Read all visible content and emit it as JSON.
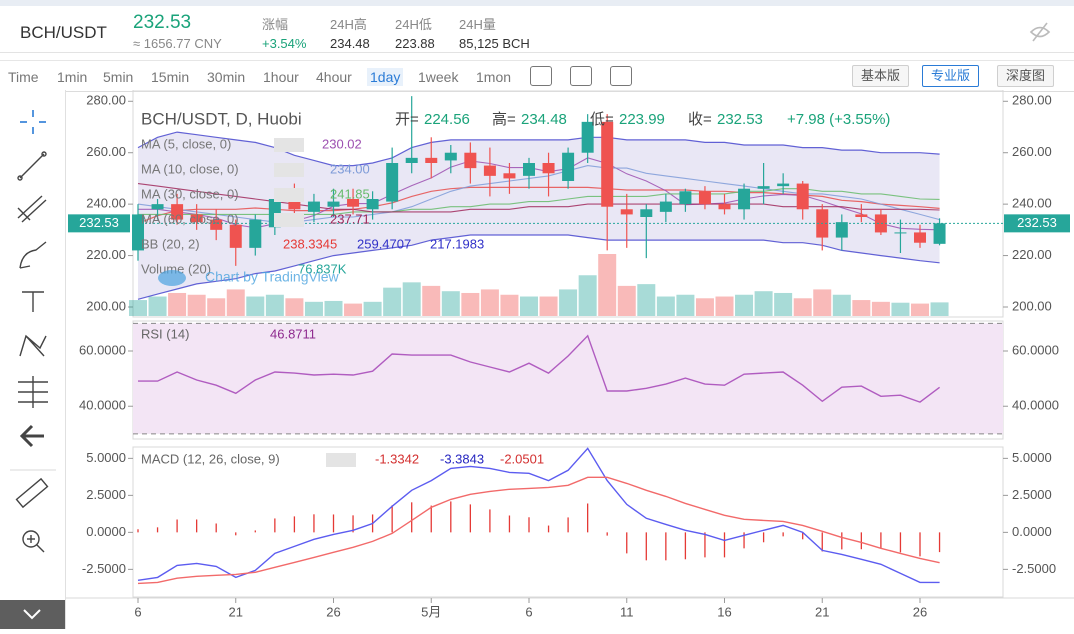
{
  "header": {
    "pair": "BCH/USDT",
    "price": "232.53",
    "cny": "≈ 1656.77 CNY",
    "stats": [
      {
        "label": "涨幅",
        "value": "+3.54%"
      },
      {
        "label": "24H高",
        "value": "234.48"
      },
      {
        "label": "24H低",
        "value": "223.88"
      },
      {
        "label": "24H量",
        "value": "85,125 BCH"
      }
    ]
  },
  "toolbar": {
    "intervals": [
      "Time",
      "1min",
      "5min",
      "15min",
      "30min",
      "1hour",
      "4hour",
      "1day",
      "1week",
      "1mon"
    ],
    "active_interval": "1day",
    "views": [
      "基本版",
      "专业版",
      "深度图"
    ],
    "active_view": "专业版"
  },
  "chart_data": [
    {
      "type": "candlestick",
      "title": "BCH/USDT, D, Huobi",
      "ohlc_labels": [
        "开=",
        "高=",
        "低=",
        "收="
      ],
      "change": "+7.98 (+3.55%)",
      "watermark": "Chart by TradingView",
      "up_color": "#26a69a",
      "down_color": "#ef5350",
      "categories": [
        "6",
        null,
        null,
        null,
        null,
        "21",
        null,
        null,
        null,
        null,
        "26",
        null,
        null,
        null,
        null,
        "5月",
        null,
        null,
        null,
        null,
        "6",
        null,
        null,
        null,
        null,
        "11",
        null,
        null,
        null,
        null,
        "16",
        null,
        null,
        null,
        null,
        "21",
        null,
        null,
        null,
        null,
        "26",
        null
      ],
      "open": [
        222,
        238,
        240,
        236,
        234,
        232,
        223,
        231,
        243,
        237,
        239,
        242,
        238,
        241,
        256,
        258,
        257,
        260,
        255,
        252,
        251,
        256,
        249,
        260,
        272,
        238,
        235,
        237,
        240,
        245,
        240,
        238,
        246,
        247,
        248,
        238,
        227,
        236,
        236,
        229,
        229,
        224.56
      ],
      "high": [
        240,
        242,
        244,
        240,
        238,
        234,
        236,
        246,
        248,
        244,
        246,
        246,
        245,
        262,
        282,
        266,
        263,
        264,
        262,
        256,
        258,
        260,
        262,
        275,
        275,
        244,
        240,
        244,
        246,
        247,
        244,
        248,
        256,
        252,
        249,
        240,
        236,
        240,
        238,
        234,
        232,
        234.48
      ],
      "low": [
        218,
        234,
        232,
        230,
        226,
        216,
        220,
        228,
        236,
        233,
        235,
        236,
        234,
        238,
        252,
        250,
        252,
        248,
        243,
        244,
        246,
        243,
        246,
        256,
        222,
        223,
        219,
        233,
        237,
        238,
        236,
        234,
        240,
        244,
        234,
        222,
        222,
        233,
        228,
        221,
        223,
        223.99
      ],
      "close": [
        236,
        240,
        234,
        233,
        230,
        223,
        234,
        242,
        238,
        241,
        241,
        239,
        242,
        256,
        258,
        256,
        260,
        254,
        251,
        250,
        256,
        252,
        260,
        272,
        239,
        236,
        238,
        241,
        245,
        240,
        238,
        246,
        247,
        248,
        238,
        227,
        233,
        235,
        229,
        229,
        225,
        232.53
      ],
      "ylim": [
        196.5,
        284
      ],
      "yticks": [
        {
          "value": 200,
          "label": "200.00"
        },
        {
          "value": 220,
          "label": "220.00"
        },
        {
          "value": 240,
          "label": "240.00"
        },
        {
          "value": 260,
          "label": "260.00"
        },
        {
          "value": 280,
          "label": "280.00"
        }
      ],
      "series": [
        {
          "name": "MA (5, close, 0)",
          "color": "#9c4fb0",
          "values": [
            238,
            238,
            237,
            236,
            234.6,
            232,
            230.8,
            232.4,
            233.4,
            235.6,
            239.2,
            240.2,
            240.2,
            243.8,
            247.2,
            250.2,
            254.4,
            256.8,
            255.8,
            254.2,
            254.2,
            252.6,
            253.8,
            258,
            255.8,
            251.8,
            249,
            245.2,
            239.8,
            240,
            240.4,
            242,
            243.2,
            243.8,
            243.4,
            241.2,
            238.6,
            236.2,
            232.4,
            230.6,
            230.2,
            230.02
          ]
        },
        {
          "name": "MA (10, close, 0)",
          "color": "#7e9bd8",
          "values": [
            240,
            239,
            238,
            237,
            236,
            235,
            234,
            233,
            233,
            234,
            235,
            235,
            236,
            237,
            239,
            242,
            245,
            247,
            248,
            249,
            250,
            251,
            253,
            255,
            254,
            254,
            252,
            251,
            250,
            249,
            248,
            247,
            246,
            245,
            244,
            244,
            243,
            242,
            240,
            238,
            236,
            234
          ],
          "value_labels": [
            null,
            null,
            null,
            null,
            null,
            null,
            null,
            null,
            null,
            null,
            null,
            null,
            null,
            null,
            null,
            null,
            null,
            null,
            null,
            null,
            null,
            null,
            null,
            null,
            null,
            null,
            null,
            null,
            null,
            null,
            null,
            null,
            null,
            null,
            null,
            null,
            null,
            null,
            null,
            null,
            null,
            "234.00"
          ]
        },
        {
          "name": "MA (30, close, 0)",
          "color": "#66bb6a",
          "values": [
            236,
            236,
            236,
            236,
            236,
            236,
            236,
            236,
            236,
            236,
            236,
            237,
            237,
            237,
            238,
            238,
            239,
            239,
            240,
            240,
            241,
            241,
            242,
            243,
            243,
            243,
            243,
            244,
            244,
            244,
            244,
            245,
            245,
            246,
            246,
            245,
            245,
            244,
            244,
            243,
            242,
            241.85
          ]
        },
        {
          "name": "MA (60, close, 0)",
          "color": "#a0285a",
          "values": [
            248,
            247,
            246,
            245,
            244,
            243,
            242,
            241,
            240,
            239,
            238,
            238,
            237,
            237,
            237,
            237,
            237,
            238,
            238,
            238,
            239,
            239,
            239,
            240,
            240,
            240,
            240,
            240,
            240,
            240,
            240,
            240,
            240,
            239,
            239,
            239,
            239,
            238,
            238,
            238,
            238,
            237.71
          ]
        }
      ],
      "bollinger": {
        "name": "BB (20, 2)",
        "basis_color": "#e53935",
        "band_color": "#3030c8",
        "fill": "#e3e1f3",
        "basis": [
          232.5,
          235.5,
          237.5,
          238,
          238,
          238,
          238.5,
          238,
          237.5,
          237.5,
          237.5,
          238,
          239,
          240.5,
          243,
          245,
          246,
          246.5,
          246.5,
          246.5,
          246.5,
          246.5,
          246.5,
          246.5,
          246,
          245.5,
          245.5,
          245.5,
          245.5,
          245,
          245,
          244.5,
          244.5,
          244,
          243.5,
          243,
          241.5,
          241,
          240,
          239.5,
          239,
          238.3345
        ],
        "upper": [
          262,
          266,
          268,
          267,
          266,
          265,
          264,
          262,
          259,
          257,
          255,
          255,
          256,
          258,
          262,
          264,
          265,
          265,
          265,
          265,
          265,
          265,
          265,
          266,
          266,
          265,
          265,
          265,
          265,
          264,
          264,
          263,
          263,
          263,
          262,
          262,
          261,
          261,
          260,
          260,
          260,
          259.4707
        ],
        "lower": [
          203,
          205,
          207,
          209,
          210,
          211,
          213,
          214,
          216,
          218,
          220,
          221,
          222,
          223,
          224,
          226,
          227,
          228,
          228,
          228,
          228,
          228,
          228,
          227,
          226,
          226,
          226,
          226,
          226,
          226,
          226,
          226,
          226,
          225,
          225,
          224,
          222,
          221,
          220,
          219,
          218,
          217.1983
        ]
      },
      "volume": {
        "name": "Volume (20)",
        "color": "#26a69a",
        "values": [
          90,
          110,
          130,
          120,
          100,
          150,
          110,
          120,
          100,
          80,
          85,
          70,
          80,
          160,
          190,
          170,
          140,
          130,
          150,
          120,
          110,
          110,
          150,
          230,
          350,
          170,
          180,
          110,
          120,
          100,
          110,
          120,
          140,
          130,
          100,
          150,
          120,
          90,
          80,
          75,
          70,
          76.837
        ],
        "value_labels": [
          null,
          null,
          null,
          null,
          null,
          null,
          null,
          null,
          null,
          null,
          null,
          null,
          null,
          null,
          null,
          null,
          null,
          null,
          null,
          null,
          null,
          null,
          null,
          null,
          null,
          null,
          null,
          null,
          null,
          null,
          null,
          null,
          null,
          null,
          null,
          null,
          null,
          null,
          null,
          null,
          null,
          "76.837K"
        ]
      }
    },
    {
      "type": "rsi",
      "title": "RSI (14)",
      "color": "#b05cc0",
      "band_fill": "#f3e5f5",
      "bands": [
        70,
        30
      ],
      "values": [
        49.1,
        49.1,
        52.4,
        49.5,
        47.6,
        44.7,
        49.5,
        52.4,
        52,
        51.3,
        51.6,
        51.3,
        52.7,
        58.9,
        58.5,
        58.5,
        58.5,
        56,
        54.2,
        52.4,
        55.6,
        52,
        58.2,
        65.5,
        45.5,
        45.5,
        46.5,
        48,
        50.2,
        48,
        47.6,
        51.6,
        52,
        52.4,
        47.6,
        41.8,
        46.9,
        47.3,
        43.6,
        44,
        41.5,
        46.8711
      ],
      "ylim": [
        28.5,
        70.5
      ],
      "yticks": [
        {
          "value": 40,
          "label": "40.0000"
        },
        {
          "value": 60,
          "label": "60.0000"
        }
      ]
    },
    {
      "type": "macd",
      "title": "MACD (12, 26, close, 9)",
      "histogram": {
        "color": "#e53935",
        "values": [
          0.21,
          0.34,
          0.87,
          0.87,
          0.6,
          -0.2,
          0.13,
          0.94,
          1.08,
          1.22,
          1.21,
          1.15,
          1.21,
          1.83,
          2.03,
          1.81,
          2.09,
          1.89,
          1.55,
          1.14,
          1.02,
          0.46,
          1.01,
          1.95,
          -0.22,
          -1.42,
          -1.89,
          -1.89,
          -1.82,
          -1.69,
          -1.69,
          -1.08,
          -0.67,
          -0.27,
          -0.47,
          -1.29,
          -1.15,
          -1.14,
          -1.08,
          -1.35,
          -1.62,
          -1.3342
        ]
      },
      "macd": {
        "color": "#5c5cf0",
        "values": [
          -3.24,
          -3.04,
          -2.23,
          -2.1,
          -2.3,
          -3.04,
          -2.57,
          -1.42,
          -0.95,
          -0.47,
          -0.14,
          0.14,
          0.6,
          1.76,
          2.84,
          3.5,
          4.32,
          4.46,
          4.32,
          4.05,
          3.99,
          3.5,
          4.19,
          5.67,
          3.5,
          1.89,
          0.95,
          0.54,
          0.14,
          -0.14,
          -0.54,
          -0.2,
          0.14,
          0.47,
          0,
          -1.22,
          -1.49,
          -1.82,
          -2.16,
          -2.77,
          -3.38,
          -3.3843
        ]
      },
      "signal": {
        "color": "#f26a6a",
        "values": [
          -3.45,
          -3.38,
          -3.1,
          -2.97,
          -2.9,
          -2.84,
          -2.7,
          -2.36,
          -2.03,
          -1.69,
          -1.35,
          -1.01,
          -0.61,
          -0.07,
          0.81,
          1.69,
          2.23,
          2.57,
          2.77,
          2.91,
          2.97,
          3.04,
          3.18,
          3.72,
          3.72,
          3.31,
          2.84,
          2.43,
          1.96,
          1.55,
          1.15,
          0.88,
          0.81,
          0.74,
          0.47,
          0.07,
          -0.34,
          -0.68,
          -1.08,
          -1.42,
          -1.76,
          -2.0501
        ]
      },
      "ylim": [
        -4.3,
        5.7
      ],
      "yticks": [
        {
          "value": -2.5,
          "label": "-2.5000"
        },
        {
          "value": 0,
          "label": "0.0000"
        },
        {
          "value": 2.5,
          "label": "2.5000"
        },
        {
          "value": 5,
          "label": "5.0000"
        }
      ]
    }
  ]
}
